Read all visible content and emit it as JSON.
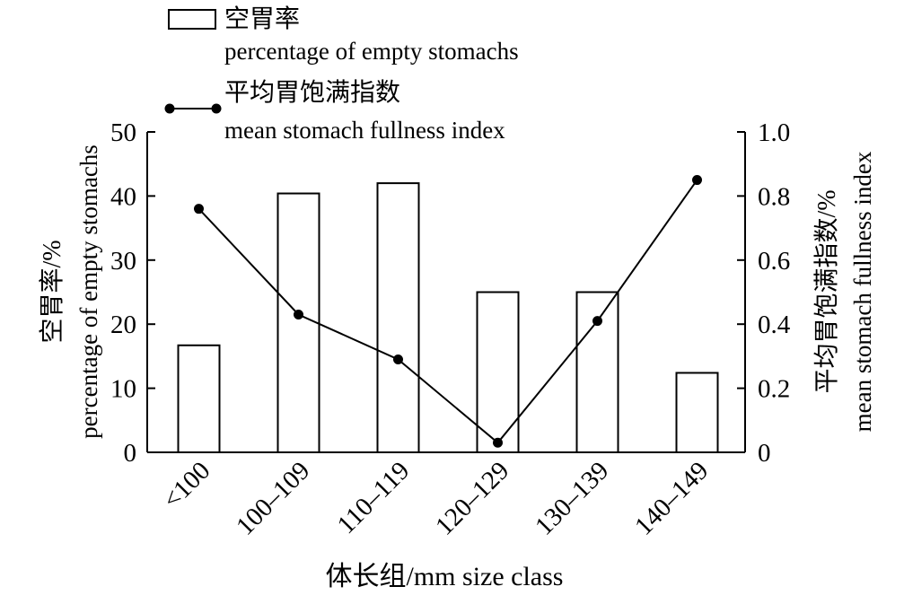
{
  "chart_data": {
    "type": "bar",
    "categories": [
      "<100",
      "100–109",
      "110–119",
      "120–129",
      "130–139",
      "140–149"
    ],
    "series": [
      {
        "name_cn": "空胃率",
        "name_en": "percentage of empty stomachs",
        "kind": "bar",
        "axis": "left",
        "values": [
          16.7,
          40.4,
          42.0,
          25.0,
          25.0,
          12.4
        ]
      },
      {
        "name_cn": "平均胃饱满指数",
        "name_en": "mean stomach fullness index",
        "kind": "line",
        "axis": "right",
        "values": [
          0.76,
          0.43,
          0.29,
          0.03,
          0.41,
          0.85
        ]
      }
    ],
    "xlabel": "体长组/mm size class",
    "ylabel_left": {
      "cn": "空胃率/%",
      "en": "percentage of empty stomachs"
    },
    "ylabel_right": {
      "cn": "平均胃饱满指数/%",
      "en": "mean stomach fullness index"
    },
    "ylim_left": [
      0,
      50
    ],
    "ylim_right": [
      0,
      1.0
    ],
    "yticks_left": [
      "0",
      "10",
      "20",
      "30",
      "40",
      "50"
    ],
    "yticks_right": [
      "0",
      "0.2",
      "0.4",
      "0.6",
      "0.8",
      "1.0"
    ],
    "legend_position": "top-left",
    "grid": false,
    "colors": {
      "bar_fill": "#ffffff",
      "stroke": "#000000",
      "line": "#000000"
    }
  }
}
